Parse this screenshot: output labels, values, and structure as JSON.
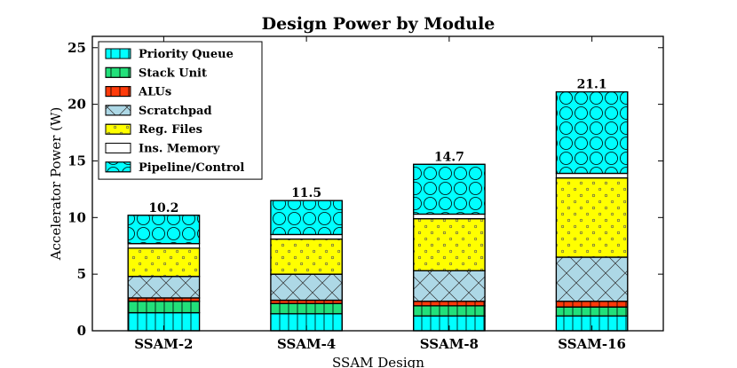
{
  "chart_data": {
    "type": "bar",
    "stacked": true,
    "title": "Design Power by Module",
    "xlabel": "SSAM Design",
    "ylabel": "Accelerator Power (W)",
    "categories": [
      "SSAM-2",
      "SSAM-4",
      "SSAM-8",
      "SSAM-16"
    ],
    "ylim": [
      0,
      26
    ],
    "yticks": [
      0,
      5,
      10,
      15,
      20,
      25
    ],
    "totals": [
      "10.2",
      "11.5",
      "14.7",
      "21.1"
    ],
    "legend_position": "upper-left",
    "series": [
      {
        "name": "Priority Queue",
        "values": [
          1.6,
          1.5,
          1.3,
          1.3
        ],
        "color": "#00ffff",
        "pattern": "vlines"
      },
      {
        "name": "Stack Unit",
        "values": [
          1.0,
          0.9,
          0.9,
          0.8
        ],
        "color": "#22e07a",
        "pattern": "vlines"
      },
      {
        "name": "ALUs",
        "values": [
          0.3,
          0.3,
          0.4,
          0.5
        ],
        "color": "#ff3a0a",
        "pattern": "vlines"
      },
      {
        "name": "Scratchpad",
        "values": [
          1.9,
          2.3,
          2.7,
          3.9
        ],
        "color": "#add8e6",
        "pattern": "xcross"
      },
      {
        "name": "Reg. Files",
        "values": [
          2.5,
          3.1,
          4.6,
          7.0
        ],
        "color": "#ffff00",
        "pattern": "dots"
      },
      {
        "name": "Ins. Memory",
        "values": [
          0.4,
          0.4,
          0.4,
          0.4
        ],
        "color": "#ffffff",
        "pattern": "none"
      },
      {
        "name": "Pipeline/Control",
        "values": [
          2.5,
          3.0,
          4.4,
          7.2
        ],
        "color": "#00ffff",
        "pattern": "circles"
      }
    ]
  }
}
